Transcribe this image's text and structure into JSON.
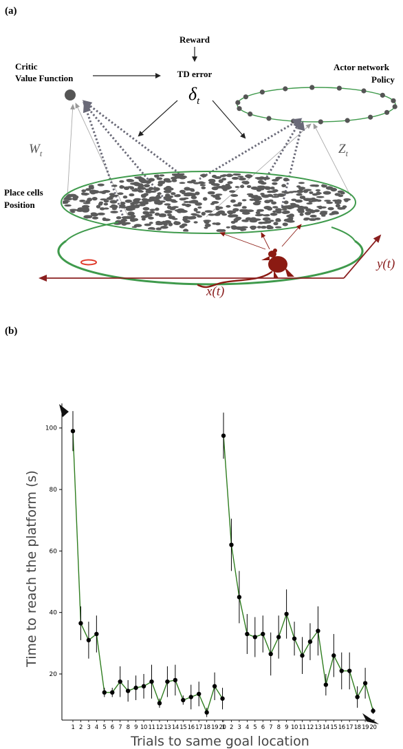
{
  "panel_a": {
    "label": "(a)",
    "reward": "Reward",
    "td_error": "TD error",
    "delta": "δ",
    "delta_sub": "t",
    "critic_line1": "Critic",
    "critic_line2": "Value Function",
    "actor_line1": "Actor network",
    "actor_line2": "Policy",
    "w_main": "W",
    "w_sub": "t",
    "z_main": "Z",
    "z_sub": "t",
    "place_line1": "Place cells",
    "place_line2": "Position",
    "x_label": "x(t)",
    "y_label": "y(t)",
    "colors": {
      "green": "#3f9a4c",
      "rat": "#8b1a12",
      "axis": "#8a1f1f",
      "cell": "#555555",
      "goal": "#e03a2a"
    }
  },
  "panel_b": {
    "label": "(b)",
    "chart_data": {
      "type": "line",
      "xlabel": "Trials to same goal location",
      "ylabel": "Time to reach the platform (s)",
      "ylim": [
        5,
        108
      ],
      "yticks": [
        20,
        40,
        60,
        80,
        100
      ],
      "categories": [
        "1",
        "2",
        "3",
        "4",
        "5",
        "6",
        "7",
        "8",
        "9",
        "10",
        "11",
        "12",
        "13",
        "14",
        "15",
        "16",
        "17",
        "18",
        "19",
        "20"
      ],
      "line_color": "#2e7d1e",
      "series": [
        {
          "values": [
            99,
            36.5,
            31,
            33,
            14,
            14,
            17.5,
            14.5,
            15.5,
            16,
            17.5,
            10.5,
            17.5,
            18,
            11.5,
            12.5,
            13.5,
            7.5,
            16,
            12
          ],
          "errors": [
            6.5,
            5.5,
            6,
            6,
            1.5,
            1.5,
            5,
            3.5,
            4,
            4,
            5.5,
            1.5,
            5,
            5,
            1.5,
            4,
            4,
            1.5,
            4.5,
            3.5
          ]
        },
        {
          "values": [
            97.5,
            62,
            45,
            33,
            32,
            33,
            26.5,
            32,
            39.5,
            31.5,
            26,
            30.5,
            34,
            16.5,
            26,
            21,
            21,
            12.5,
            17,
            8
          ],
          "errors": [
            7.5,
            8.5,
            8.5,
            6.5,
            6.5,
            6,
            7,
            7,
            8,
            5.5,
            6,
            6,
            8,
            3.5,
            7,
            6,
            6,
            3.5,
            5,
            1
          ]
        }
      ]
    }
  }
}
